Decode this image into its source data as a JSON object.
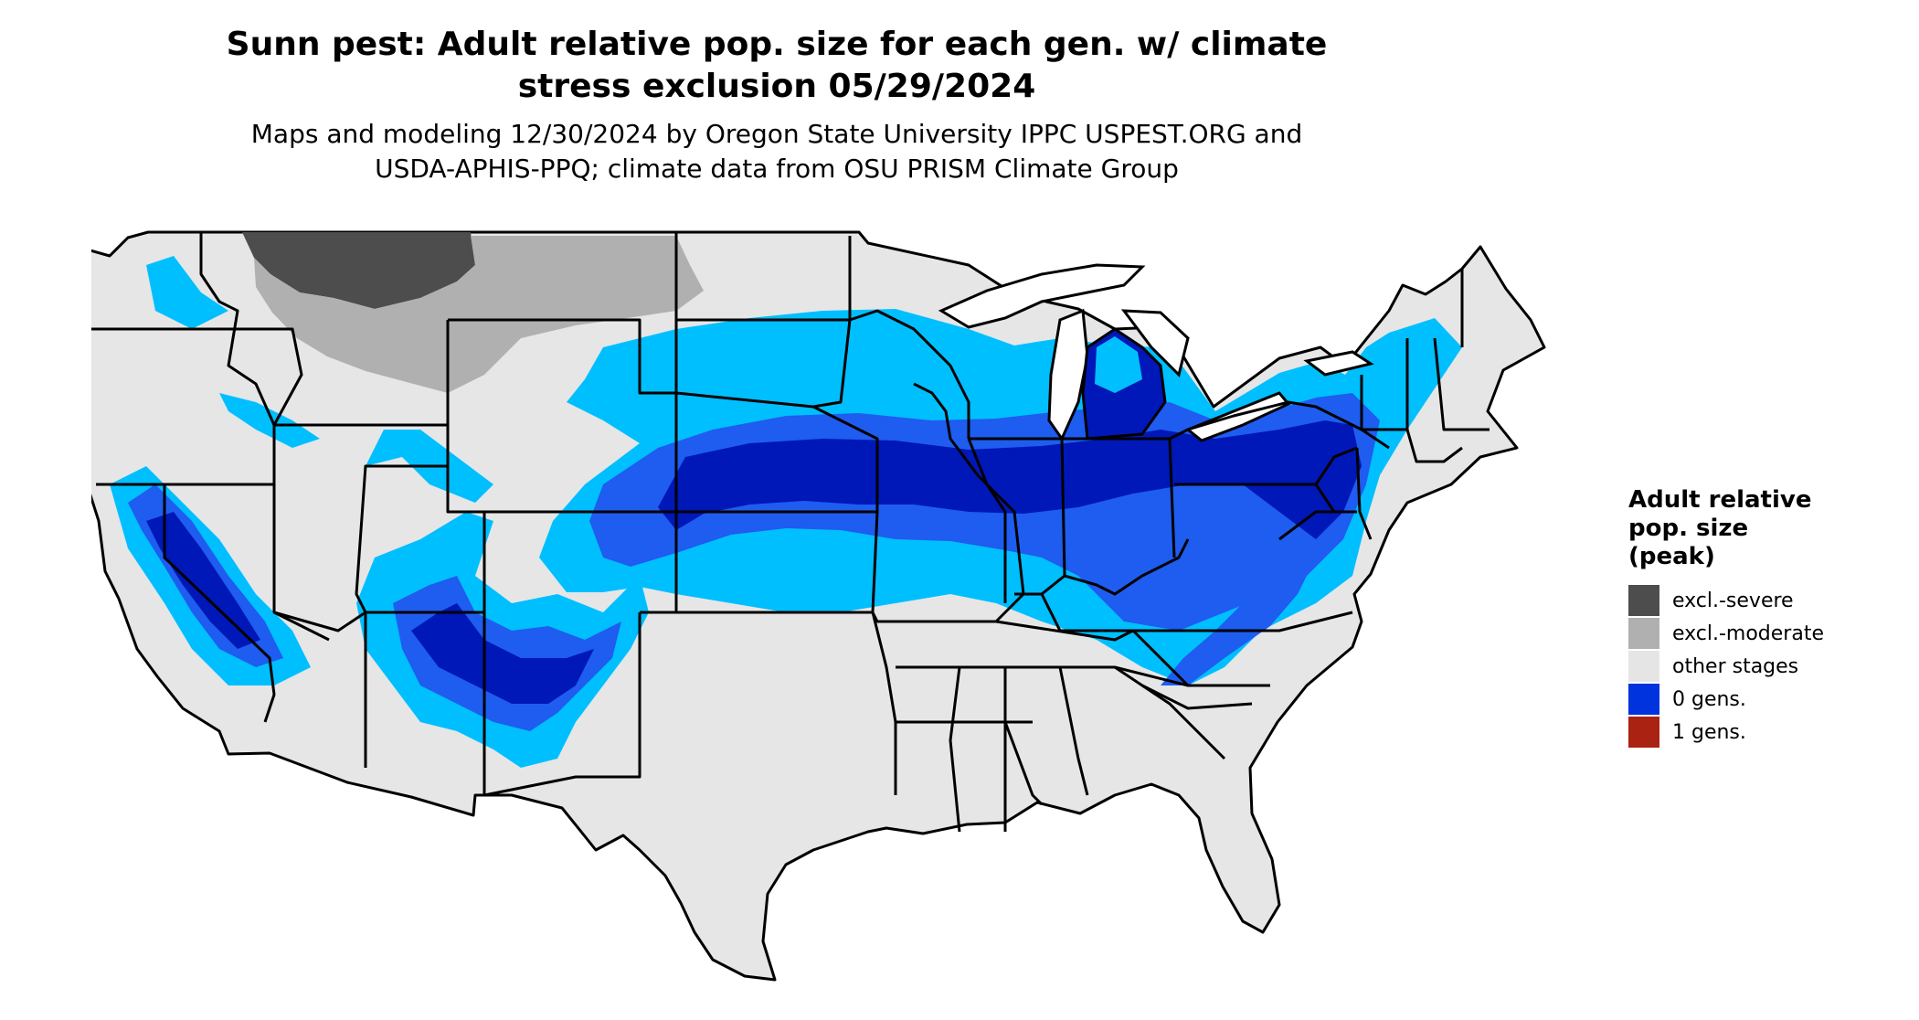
{
  "title_lines": [
    "Sunn pest: Adult relative pop. size for each gen. w/ climate",
    "stress exclusion 05/29/2024"
  ],
  "subtitle_lines": [
    "Maps and modeling 12/30/2024 by Oregon State University IPPC USPEST.ORG and",
    "USDA-APHIS-PPQ; climate data from OSU PRISM Climate Group"
  ],
  "legend": {
    "title_lines": [
      "Adult relative",
      "pop. size",
      "(peak)"
    ],
    "items": [
      {
        "label": "excl.-severe",
        "color": "#4d4d4d"
      },
      {
        "label": "excl.-moderate",
        "color": "#b0b0b0"
      },
      {
        "label": "other stages",
        "color": "#e5e5e5"
      },
      {
        "label": "0 gens.",
        "color": "#0033dd"
      },
      {
        "label": "1 gens.",
        "color": "#aa2211"
      }
    ]
  },
  "palette": {
    "land": "#e6e6e6",
    "border": "#000000",
    "light_blue": "#00bfff",
    "mid_blue": "#1f5cf0",
    "dark_blue": "#0018b8",
    "dark_gray": "#4d4d4d",
    "light_gray": "#b0b0b0"
  }
}
